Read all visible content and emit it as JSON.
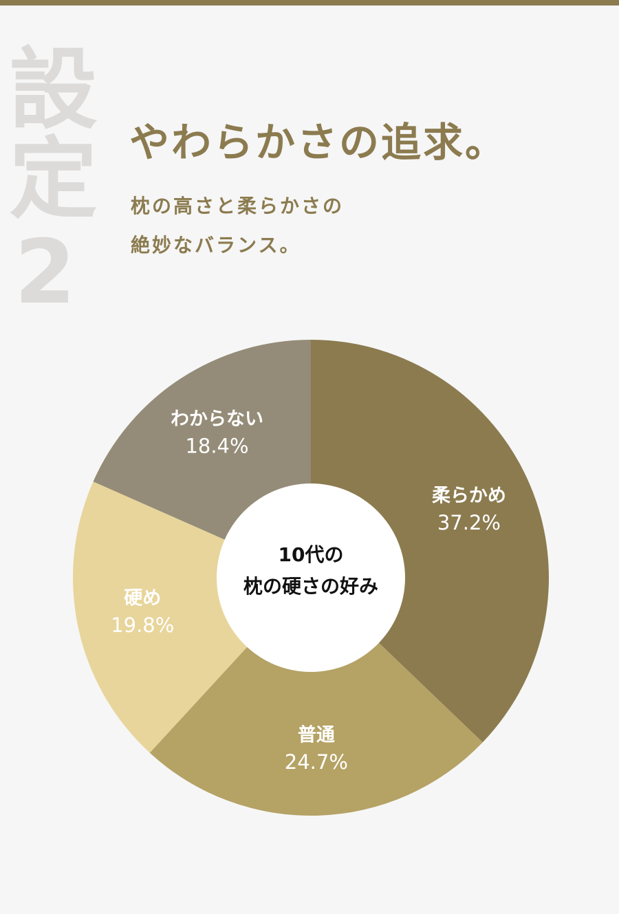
{
  "header": {
    "badge": "設定2",
    "title": "やわらかさの追求。",
    "subtitle": [
      "枕の高さと柔らかさの",
      "絶妙なバランス。"
    ]
  },
  "chart_data": {
    "type": "pie",
    "donut": true,
    "title": [
      "10代の",
      "枕の硬さの好み"
    ],
    "categories": [
      "柔らかめ",
      "普通",
      "硬め",
      "わからない"
    ],
    "values": [
      37.2,
      24.7,
      19.8,
      18.4
    ],
    "value_labels": [
      "37.2%",
      "24.7%",
      "19.8%",
      "18.4%"
    ],
    "colors": [
      "#8b7b4f",
      "#b5a265",
      "#e8d59b",
      "#948c78"
    ]
  }
}
